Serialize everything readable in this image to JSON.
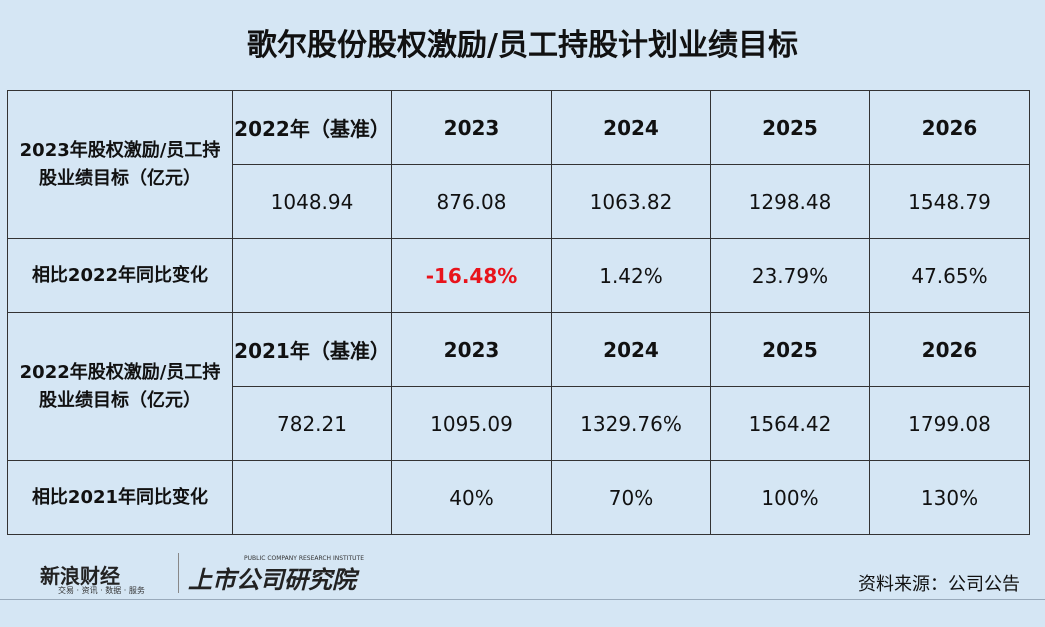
{
  "title": "歌尔股份股权激励/员工持股计划业绩目标",
  "table": {
    "sections": [
      {
        "label": "2023年股权激励/员工持股业绩目标（亿元）",
        "years": [
          "2022年（基准）",
          "2023",
          "2024",
          "2025",
          "2026"
        ],
        "values": [
          "1048.94",
          "876.08",
          "1063.82",
          "1298.48",
          "1548.79"
        ],
        "change_label": "相比2022年同比变化",
        "changes": [
          "-16.48%",
          "1.42%",
          "23.79%",
          "47.65%"
        ]
      },
      {
        "label": "2022年股权激励/员工持股业绩目标（亿元）",
        "years": [
          "2021年（基准）",
          "2023",
          "2024",
          "2025",
          "2026"
        ],
        "values": [
          "782.21",
          "1095.09",
          "1329.76%",
          "1564.42",
          "1799.08"
        ],
        "change_label": "相比2021年同比变化",
        "changes": [
          "40%",
          "70%",
          "100%",
          "130%"
        ]
      }
    ]
  },
  "footer": {
    "brand": "新浪财经",
    "brand_tagline": "交易 · 资讯 · 数据 · 服务",
    "institute": "上市公司研究院",
    "institute_en": "PUBLIC COMPANY RESEARCH INSTITUTE",
    "source": "资料来源：公司公告"
  }
}
